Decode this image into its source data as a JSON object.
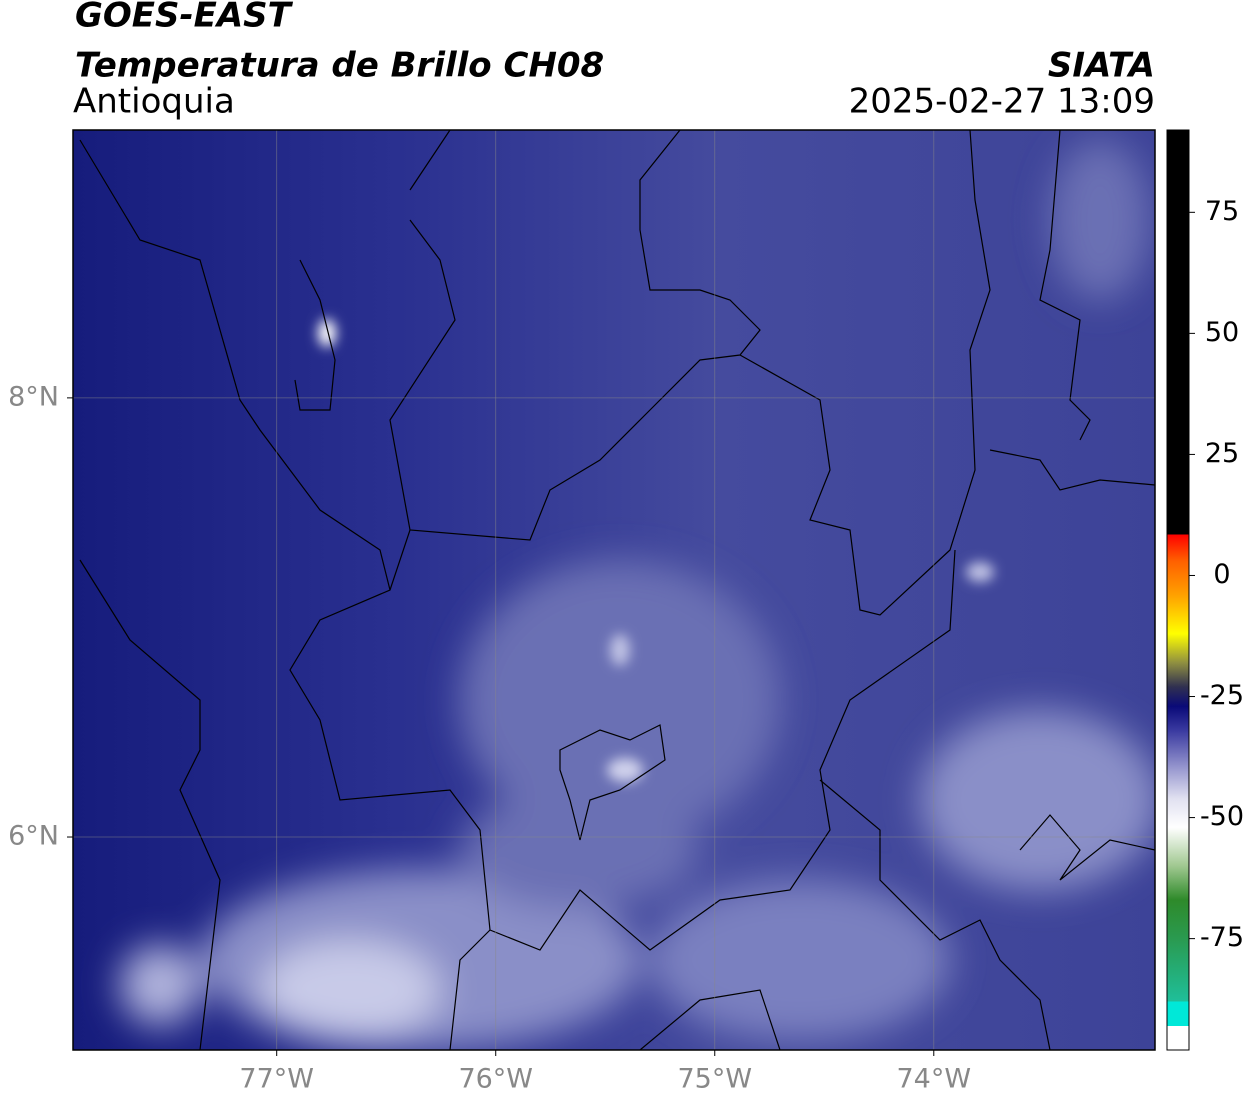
{
  "header": {
    "title": "GOES-EAST",
    "subtitle": "Temperatura de Brillo CH08",
    "source": "SIATA",
    "region": "Antioquia",
    "timestamp": "2025-02-27 13:09"
  },
  "map": {
    "xlim": [
      -77.93,
      -72.99
    ],
    "ylim": [
      5.03,
      9.22
    ],
    "xticks": [
      {
        "value": -77,
        "label": "77°W"
      },
      {
        "value": -76,
        "label": "76°W"
      },
      {
        "value": -75,
        "label": "75°W"
      },
      {
        "value": -74,
        "label": "74°W"
      }
    ],
    "yticks": [
      {
        "value": 8,
        "label": "8°N"
      },
      {
        "value": 6,
        "label": "6°N"
      }
    ],
    "grid": true
  },
  "colorbar": {
    "lim": [
      -98,
      92
    ],
    "ticks": [
      75,
      50,
      25,
      0,
      -25,
      -50,
      -75
    ],
    "stops": [
      {
        "value": -98,
        "color": "#ffffff"
      },
      {
        "value": -93,
        "color": "#ffffff"
      },
      {
        "value": -93,
        "color": "#00e8d8"
      },
      {
        "value": -88,
        "color": "#00e8d8"
      },
      {
        "value": -88,
        "color": "#1fbf9a"
      },
      {
        "value": -75,
        "color": "#2a9a50"
      },
      {
        "value": -67,
        "color": "#2e8a2a"
      },
      {
        "value": -60,
        "color": "#a0c890"
      },
      {
        "value": -52,
        "color": "#ffffff"
      },
      {
        "value": -46,
        "color": "#e0e0f0"
      },
      {
        "value": -40,
        "color": "#9a9ad0"
      },
      {
        "value": -32,
        "color": "#3a3aa0"
      },
      {
        "value": -27,
        "color": "#0a0a78"
      },
      {
        "value": -23,
        "color": "#303050"
      },
      {
        "value": -18,
        "color": "#909040"
      },
      {
        "value": -12,
        "color": "#ffff00"
      },
      {
        "value": -4,
        "color": "#ffa000"
      },
      {
        "value": 3,
        "color": "#ff6000"
      },
      {
        "value": 8.5,
        "color": "#ff0000"
      },
      {
        "value": 8.5,
        "color": "#000000"
      },
      {
        "value": 92,
        "color": "#000000"
      }
    ]
  }
}
